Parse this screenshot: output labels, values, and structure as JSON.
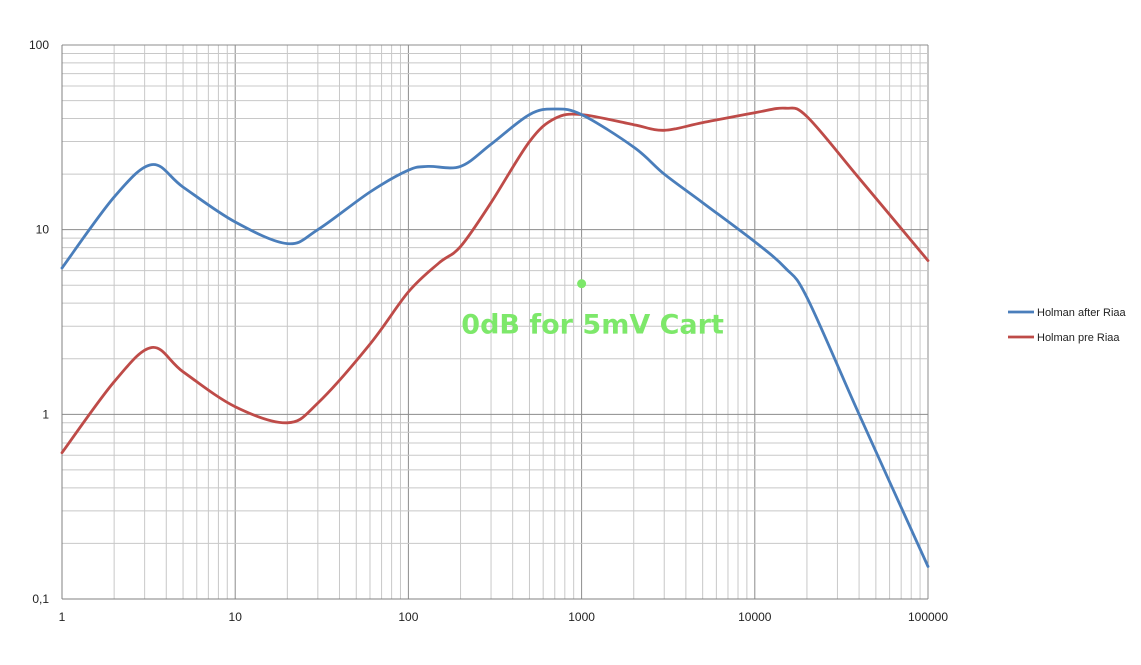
{
  "chart_data": {
    "type": "line",
    "title": "",
    "xlabel": "",
    "ylabel": "",
    "x_scale": "log",
    "y_scale": "log",
    "xlim": [
      1,
      100000
    ],
    "ylim": [
      0.1,
      100
    ],
    "grid": true,
    "x_tick_labels": [
      "1",
      "10",
      "100",
      "1000",
      "10000",
      "100000"
    ],
    "y_tick_labels": [
      "0,1",
      "1",
      "10",
      "100"
    ],
    "legend_position": "right",
    "series": [
      {
        "name": "Holman after Riaa",
        "color": "#4a7ebb",
        "x": [
          1,
          2,
          3.3,
          5,
          10,
          20,
          30,
          60,
          100,
          130,
          200,
          300,
          500,
          700,
          1000,
          2000,
          3000,
          5000,
          10000,
          15000,
          20000,
          40000,
          100000
        ],
        "y": [
          6.2,
          15,
          22.5,
          17,
          11,
          8.4,
          10,
          16,
          21,
          22,
          22,
          29,
          42,
          45,
          42,
          28,
          20,
          14,
          8.6,
          6.2,
          4.3,
          1.0,
          0.15
        ]
      },
      {
        "name": "Holman pre Riaa",
        "color": "#be4b48",
        "x": [
          1,
          2,
          3.3,
          5,
          10,
          20,
          30,
          60,
          100,
          150,
          200,
          300,
          500,
          700,
          1000,
          2000,
          3000,
          5000,
          10000,
          15000,
          20000,
          40000,
          100000
        ],
        "y": [
          0.62,
          1.5,
          2.3,
          1.7,
          1.1,
          0.9,
          1.15,
          2.4,
          4.6,
          6.6,
          8.1,
          14,
          30,
          40,
          42,
          37,
          34.5,
          38,
          43,
          45.5,
          41,
          19,
          6.8
        ]
      }
    ],
    "annotations": [
      {
        "text": "0dB for 5mV Cart",
        "color": "#7de86a",
        "point": {
          "x": 1000,
          "y": 5.1
        }
      }
    ]
  }
}
